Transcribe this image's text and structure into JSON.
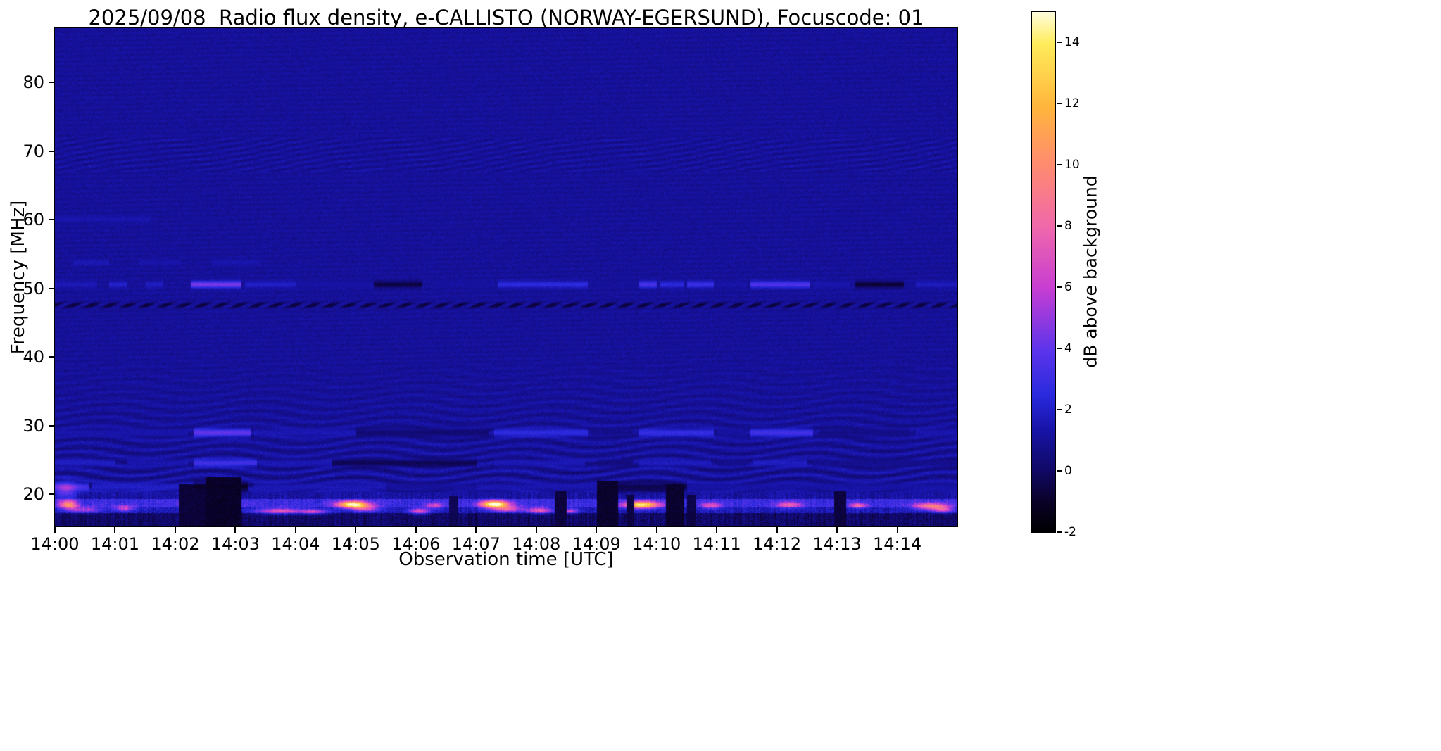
{
  "title": "2025/09/08  Radio flux density, e-CALLISTO (NORWAY-EGERSUND), Focuscode: 01",
  "chart_data": {
    "type": "heatmap",
    "title": "2025/09/08  Radio flux density, e-CALLISTO (NORWAY-EGERSUND), Focuscode: 01",
    "xlabel": "Observation time [UTC]",
    "ylabel": "Frequency [MHz]",
    "colorbar_label": "dB above background",
    "meta": {
      "date": "2025/09/08",
      "instrument": "e-CALLISTO",
      "station": "NORWAY-EGERSUND",
      "focuscode": "01"
    },
    "x_ticks": [
      {
        "label": "14:00",
        "t": 0
      },
      {
        "label": "14:01",
        "t": 1
      },
      {
        "label": "14:02",
        "t": 2
      },
      {
        "label": "14:03",
        "t": 3
      },
      {
        "label": "14:04",
        "t": 4
      },
      {
        "label": "14:05",
        "t": 5
      },
      {
        "label": "14:06",
        "t": 6
      },
      {
        "label": "14:07",
        "t": 7
      },
      {
        "label": "14:08",
        "t": 8
      },
      {
        "label": "14:09",
        "t": 9
      },
      {
        "label": "14:10",
        "t": 10
      },
      {
        "label": "14:11",
        "t": 11
      },
      {
        "label": "14:12",
        "t": 12
      },
      {
        "label": "14:13",
        "t": 13
      },
      {
        "label": "14:14",
        "t": 14
      }
    ],
    "x_range_minutes": [
      0,
      15
    ],
    "y_ticks": [
      {
        "label": "20",
        "f": 20
      },
      {
        "label": "30",
        "f": 30
      },
      {
        "label": "40",
        "f": 40
      },
      {
        "label": "50",
        "f": 50
      },
      {
        "label": "60",
        "f": 60
      },
      {
        "label": "70",
        "f": 70
      },
      {
        "label": "80",
        "f": 80
      }
    ],
    "y_range_mhz": [
      15.3,
      87.9
    ],
    "value_range_db": [
      -2,
      15
    ],
    "colorbar_ticks": [
      {
        "label": "-2",
        "v": -2
      },
      {
        "label": "0",
        "v": 0
      },
      {
        "label": "2",
        "v": 2
      },
      {
        "label": "4",
        "v": 4
      },
      {
        "label": "6",
        "v": 6
      },
      {
        "label": "8",
        "v": 8
      },
      {
        "label": "10",
        "v": 10
      },
      {
        "label": "12",
        "v": 12
      },
      {
        "label": "14",
        "v": 14
      }
    ],
    "colormap_stops": [
      [
        0.0,
        0,
        0,
        0
      ],
      [
        0.06,
        10,
        2,
        40
      ],
      [
        0.118,
        16,
        8,
        100
      ],
      [
        0.2,
        24,
        20,
        170
      ],
      [
        0.265,
        42,
        42,
        222
      ],
      [
        0.35,
        92,
        52,
        235
      ],
      [
        0.47,
        200,
        62,
        210
      ],
      [
        0.59,
        240,
        105,
        170
      ],
      [
        0.71,
        255,
        140,
        110
      ],
      [
        0.82,
        255,
        182,
        60
      ],
      [
        0.94,
        255,
        236,
        92
      ],
      [
        1.0,
        255,
        252,
        222
      ]
    ],
    "background_db": 1.05,
    "background_noise_db": 0.8,
    "features": {
      "wave_interference": {
        "f_max": 42,
        "amplitude_db": 0.85
      },
      "mottled_band": {
        "f0": 67,
        "f1": 72,
        "amplitude_db": 0.3
      },
      "emission_lines": [
        {
          "freq": 50.6,
          "sigma": 0.33,
          "segments": [
            [
              0.0,
              0.7,
              1.7
            ],
            [
              0.9,
              1.2,
              2.1
            ],
            [
              1.5,
              1.8,
              1.9
            ],
            [
              2.25,
              3.1,
              4.6
            ],
            [
              3.15,
              4.0,
              2.0
            ],
            [
              4.0,
              5.3,
              1.3
            ],
            [
              5.3,
              6.1,
              -0.6
            ],
            [
              6.3,
              7.3,
              1.2
            ],
            [
              7.35,
              8.85,
              2.6
            ],
            [
              8.9,
              9.6,
              1.1
            ],
            [
              9.7,
              10.0,
              3.4
            ],
            [
              10.05,
              10.45,
              2.5
            ],
            [
              10.5,
              10.95,
              3.0
            ],
            [
              11.0,
              11.5,
              1.4
            ],
            [
              11.55,
              12.55,
              3.6
            ],
            [
              12.6,
              13.2,
              1.5
            ],
            [
              13.3,
              14.1,
              -0.8
            ],
            [
              14.3,
              15.0,
              1.8
            ]
          ]
        },
        {
          "freq": 47.6,
          "sigma": 0.28,
          "dashed": true,
          "segments": [
            [
              0,
              15,
              -0.7
            ]
          ]
        },
        {
          "freq": 53.8,
          "sigma": 0.3,
          "segments": [
            [
              0.3,
              0.9,
              1.6
            ],
            [
              1.4,
              2.1,
              1.4
            ],
            [
              2.6,
              3.4,
              1.5
            ]
          ]
        },
        {
          "freq": 60.1,
          "sigma": 0.3,
          "segments": [
            [
              0.0,
              1.6,
              1.5
            ],
            [
              2.0,
              2.6,
              1.1
            ]
          ]
        },
        {
          "freq": 29.0,
          "sigma": 0.4,
          "segments": [
            [
              0.0,
              2.2,
              1.4
            ],
            [
              2.3,
              3.25,
              4.0
            ],
            [
              3.3,
              5.0,
              1.6
            ],
            [
              5.0,
              7.2,
              0.3
            ],
            [
              7.3,
              8.85,
              2.6
            ],
            [
              8.9,
              9.6,
              0.8
            ],
            [
              9.7,
              10.95,
              2.8
            ],
            [
              11.0,
              11.5,
              1.2
            ],
            [
              11.55,
              12.6,
              3.2
            ],
            [
              12.7,
              14.2,
              0.7
            ],
            [
              14.3,
              15.0,
              1.5
            ]
          ]
        },
        {
          "freq": 24.6,
          "sigma": 0.35,
          "segments": [
            [
              0.0,
              1.0,
              1.9
            ],
            [
              1.2,
              2.2,
              1.5
            ],
            [
              2.3,
              3.35,
              3.2
            ],
            [
              3.4,
              4.6,
              1.6
            ],
            [
              4.6,
              7.0,
              -0.3
            ],
            [
              7.3,
              8.8,
              1.6
            ],
            [
              9.0,
              9.6,
              0.5
            ],
            [
              9.7,
              10.9,
              1.8
            ],
            [
              11.0,
              11.5,
              0.8
            ],
            [
              11.6,
              12.5,
              1.9
            ],
            [
              12.6,
              15.0,
              0.8
            ]
          ]
        },
        {
          "freq": 21.1,
          "sigma": 0.45,
          "segments": [
            [
              0.0,
              0.55,
              3.2
            ],
            [
              0.6,
              2.25,
              2.0
            ],
            [
              2.3,
              3.2,
              -1.0
            ],
            [
              3.3,
              5.5,
              1.6
            ],
            [
              5.5,
              7.0,
              1.1
            ],
            [
              7.0,
              9.0,
              1.5
            ],
            [
              9.0,
              10.5,
              -0.4
            ],
            [
              10.5,
              15.0,
              1.3
            ]
          ]
        }
      ],
      "bursts": [
        {
          "t": 0.18,
          "f": 20.6,
          "st": 0.12,
          "sf": 0.9,
          "db": 2.8
        },
        {
          "t": 0.22,
          "f": 18.5,
          "st": 0.1,
          "sf": 0.45,
          "db": 7.5
        },
        {
          "t": 0.5,
          "f": 17.8,
          "st": 0.18,
          "sf": 0.3,
          "db": 4.0
        },
        {
          "t": 1.15,
          "f": 18.0,
          "st": 0.12,
          "sf": 0.3,
          "db": 4.5
        },
        {
          "t": 2.6,
          "f": 18.6,
          "st": 0.3,
          "sf": 0.3,
          "db": 2.5
        },
        {
          "t": 3.75,
          "f": 17.6,
          "st": 0.28,
          "sf": 0.3,
          "db": 5.5
        },
        {
          "t": 4.3,
          "f": 17.5,
          "st": 0.14,
          "sf": 0.25,
          "db": 4.5
        },
        {
          "t": 4.95,
          "f": 18.55,
          "st": 0.18,
          "sf": 0.35,
          "db": 12.5
        },
        {
          "t": 5.15,
          "f": 17.95,
          "st": 0.15,
          "sf": 0.3,
          "db": 5.0
        },
        {
          "t": 6.05,
          "f": 17.6,
          "st": 0.12,
          "sf": 0.3,
          "db": 5.5
        },
        {
          "t": 6.3,
          "f": 18.4,
          "st": 0.1,
          "sf": 0.3,
          "db": 4.0
        },
        {
          "t": 7.3,
          "f": 18.6,
          "st": 0.16,
          "sf": 0.35,
          "db": 13.5
        },
        {
          "t": 7.5,
          "f": 17.9,
          "st": 0.18,
          "sf": 0.3,
          "db": 6.0
        },
        {
          "t": 8.05,
          "f": 17.7,
          "st": 0.15,
          "sf": 0.3,
          "db": 6.0
        },
        {
          "t": 8.55,
          "f": 17.6,
          "st": 0.1,
          "sf": 0.25,
          "db": 4.5
        },
        {
          "t": 9.75,
          "f": 18.5,
          "st": 0.2,
          "sf": 0.35,
          "db": 11.5
        },
        {
          "t": 10.9,
          "f": 18.4,
          "st": 0.12,
          "sf": 0.3,
          "db": 4.5
        },
        {
          "t": 12.2,
          "f": 18.5,
          "st": 0.15,
          "sf": 0.3,
          "db": 5.0
        },
        {
          "t": 13.35,
          "f": 18.4,
          "st": 0.1,
          "sf": 0.25,
          "db": 5.5
        },
        {
          "t": 14.55,
          "f": 18.3,
          "st": 0.2,
          "sf": 0.35,
          "db": 6.5
        },
        {
          "t": 14.75,
          "f": 17.8,
          "st": 0.12,
          "sf": 0.3,
          "db": 5.0
        }
      ],
      "noise_bands": [
        {
          "f0": 18.15,
          "f1": 19.3,
          "mean": 2.6,
          "var": 1.8
        },
        {
          "f0": 17.3,
          "f1": 18.15,
          "mean": 1.4,
          "var": 1.6
        },
        {
          "f0": 15.3,
          "f1": 17.3,
          "mean": -0.2,
          "var": 1.5
        },
        {
          "f0": 19.3,
          "f1": 20.4,
          "mean": 1.0,
          "var": 1.2
        }
      ],
      "dark_columns": [
        {
          "t0": 2.05,
          "t1": 2.5,
          "fmax": 21.5,
          "db": -1.1
        },
        {
          "t0": 2.5,
          "t1": 3.1,
          "fmax": 22.5,
          "db": -1.4
        },
        {
          "t0": 6.55,
          "t1": 6.7,
          "fmax": 19.8,
          "db": -0.6
        },
        {
          "t0": 8.3,
          "t1": 8.5,
          "fmax": 20.5,
          "db": -1.0
        },
        {
          "t0": 9.0,
          "t1": 9.35,
          "fmax": 22.0,
          "db": -1.3
        },
        {
          "t0": 9.5,
          "t1": 9.62,
          "fmax": 20.0,
          "db": -0.9
        },
        {
          "t0": 10.15,
          "t1": 10.45,
          "fmax": 21.5,
          "db": -1.3
        },
        {
          "t0": 10.5,
          "t1": 10.65,
          "fmax": 20.0,
          "db": -0.8
        },
        {
          "t0": 12.95,
          "t1": 13.15,
          "fmax": 20.5,
          "db": -1.0
        }
      ]
    }
  }
}
